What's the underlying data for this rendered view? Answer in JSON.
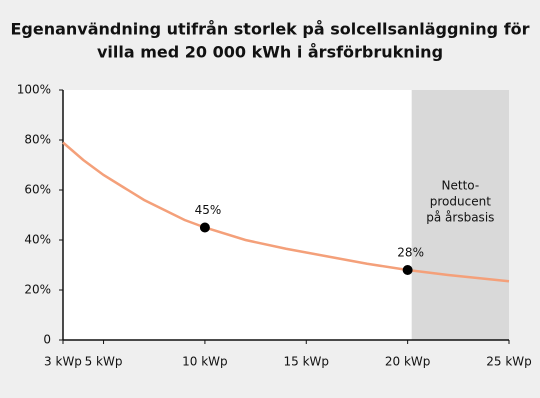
{
  "chart_data": {
    "type": "line",
    "title": [
      "Egenanvändning utifrån storlek på solcellsanläggning för",
      "villa med 20 000 kWh i årsförbrukning"
    ],
    "x": [
      3,
      4,
      5,
      6,
      7,
      8,
      9,
      10,
      12,
      14,
      15,
      16,
      18,
      20,
      22,
      25
    ],
    "series": [
      {
        "color": "#f4a07a",
        "values": [
          79,
          72,
          66,
          61,
          56,
          52,
          48,
          45,
          40,
          36.5,
          35,
          33.5,
          30.5,
          28,
          26,
          23.5
        ]
      }
    ],
    "markers": [
      {
        "x": 10,
        "value": 45,
        "label": "45%"
      },
      {
        "x": 20,
        "value": 28,
        "label": "28%"
      }
    ],
    "shaded_region": {
      "x_start": 20.2,
      "x_end": 25,
      "color": "#d9d9d9",
      "label_lines": [
        "Netto-",
        "producent",
        "på årsbasis"
      ]
    },
    "xlim": [
      3,
      25
    ],
    "xticks": [
      {
        "value": 3,
        "label": "3 kWp"
      },
      {
        "value": 5,
        "label": "5 kWp"
      },
      {
        "value": 10,
        "label": "10 kWp"
      },
      {
        "value": 15,
        "label": "15 kWp"
      },
      {
        "value": 20,
        "label": "20 kWp"
      },
      {
        "value": 25,
        "label": "25 kWp"
      }
    ],
    "ylim": [
      0,
      100
    ],
    "yticks": [
      0,
      {
        "value": 20,
        "label": "20%"
      },
      {
        "value": 40,
        "label": "40%"
      },
      {
        "value": 60,
        "label": "60%"
      },
      {
        "value": 80,
        "label": "80%"
      },
      {
        "value": 100,
        "label": "100%"
      }
    ]
  }
}
